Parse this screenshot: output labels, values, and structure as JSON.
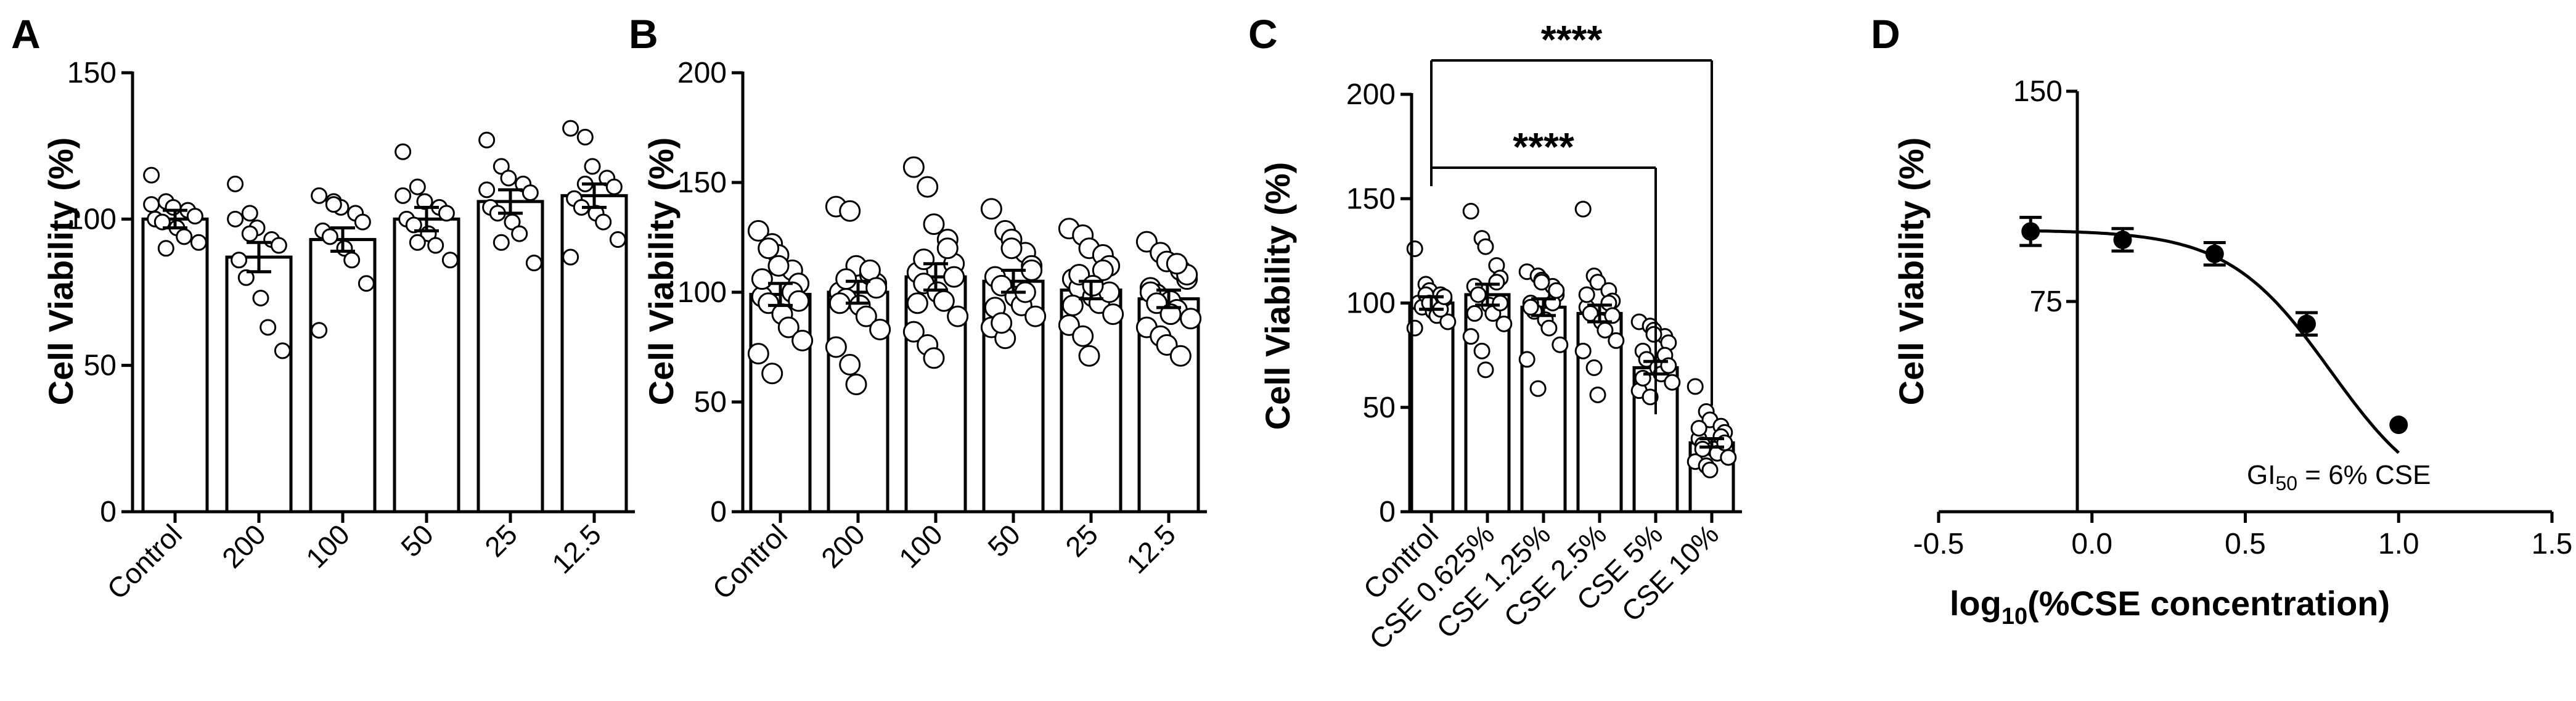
{
  "panels": [
    {
      "label": "A"
    },
    {
      "label": "B"
    },
    {
      "label": "C"
    },
    {
      "label": "D"
    }
  ],
  "chart_data": [
    {
      "id": "A",
      "type": "bar",
      "ylabel": "Cell Viability (%)",
      "xlabel": "",
      "ylim": [
        0,
        150
      ],
      "yticks": [
        "0",
        "50",
        "100",
        "150"
      ],
      "categories": [
        "Control",
        "200",
        "100",
        "50",
        "25",
        "12.5"
      ],
      "values": [
        100,
        87,
        93,
        100,
        106,
        108
      ],
      "sem": [
        3,
        5,
        4,
        4,
        4,
        4
      ],
      "points": [
        [
          115,
          106,
          104,
          103,
          101,
          100,
          99,
          97,
          94,
          92,
          105,
          90
        ],
        [
          112,
          102,
          97,
          93,
          91,
          86,
          80,
          73,
          63,
          55,
          100,
          95
        ],
        [
          108,
          106,
          104,
          102,
          99,
          96,
          94,
          90,
          86,
          78,
          62,
          105
        ],
        [
          123,
          111,
          106,
          104,
          102,
          100,
          98,
          95,
          91,
          86,
          108,
          92
        ],
        [
          127,
          118,
          114,
          112,
          109,
          104,
          102,
          99,
          95,
          85,
          110,
          92
        ],
        [
          131,
          128,
          118,
          114,
          111,
          107,
          104,
          102,
          99,
          93,
          87,
          112
        ]
      ]
    },
    {
      "id": "B",
      "type": "bar",
      "ylabel": "Cell Viability (%)",
      "xlabel": "",
      "ylim": [
        0,
        200
      ],
      "yticks": [
        "0",
        "50",
        "100",
        "150",
        "200"
      ],
      "categories": [
        "Control",
        "200",
        "100",
        "50",
        "25",
        "12.5"
      ],
      "values": [
        99,
        100,
        107,
        105,
        101,
        97
      ],
      "sem": [
        5,
        5,
        6,
        5,
        4,
        4
      ],
      "points": [
        [
          128,
          122,
          117,
          110,
          104,
          98,
          95,
          90,
          84,
          78,
          72,
          63,
          112,
          100,
          96,
          106,
          120
        ],
        [
          139,
          137,
          112,
          108,
          104,
          100,
          97,
          94,
          89,
          83,
          75,
          67,
          58,
          110,
          102,
          95,
          106
        ],
        [
          157,
          148,
          131,
          124,
          113,
          109,
          104,
          100,
          96,
          89,
          82,
          76,
          70,
          120,
          107,
          95,
          115
        ],
        [
          138,
          128,
          124,
          118,
          112,
          107,
          103,
          98,
          94,
          89,
          84,
          79,
          120,
          100,
          110,
          93,
          86
        ],
        [
          129,
          126,
          120,
          117,
          112,
          106,
          102,
          98,
          95,
          90,
          85,
          80,
          71,
          110,
          100,
          94,
          108,
          103
        ],
        [
          123,
          118,
          114,
          110,
          106,
          102,
          99,
          96,
          92,
          88,
          84,
          80,
          76,
          71,
          108,
          100,
          95,
          90,
          113
        ]
      ]
    },
    {
      "id": "C",
      "type": "bar",
      "ylabel": "Cell Viability (%)",
      "xlabel": "",
      "ylim": [
        0,
        200
      ],
      "yticks": [
        "0",
        "50",
        "100",
        "150",
        "200"
      ],
      "categories": [
        "Control",
        "CSE 0.625%",
        "CSE 1.25%",
        "CSE 2.5%",
        "CSE 5%",
        "CSE 10%"
      ],
      "values": [
        100,
        104,
        98,
        95,
        69,
        33
      ],
      "sem": [
        3,
        5,
        4,
        4,
        3,
        2
      ],
      "points": [
        [
          126,
          109,
          106,
          104,
          102,
          100,
          98,
          96,
          94,
          91,
          88,
          104,
          100,
          97,
          103
        ],
        [
          144,
          131,
          127,
          118,
          112,
          108,
          104,
          99,
          95,
          90,
          84,
          77,
          68,
          110,
          100,
          95
        ],
        [
          115,
          113,
          111,
          108,
          104,
          100,
          96,
          92,
          88,
          80,
          73,
          59,
          110,
          100,
          106,
          98
        ],
        [
          145,
          113,
          110,
          106,
          101,
          98,
          95,
          91,
          87,
          82,
          77,
          69,
          56,
          100,
          94,
          104
        ],
        [
          91,
          89,
          87,
          84,
          81,
          77,
          73,
          69,
          66,
          62,
          58,
          55,
          85,
          75,
          70,
          64
        ],
        [
          60,
          48,
          44,
          41,
          38,
          35,
          32,
          30,
          28,
          26,
          24,
          22,
          20,
          36,
          33,
          40,
          30
        ]
      ],
      "annotations": [
        {
          "from": "Control",
          "to": "CSE 10%",
          "text": "****"
        },
        {
          "from": "Control",
          "to": "CSE 5%",
          "text": "****"
        }
      ]
    },
    {
      "id": "D",
      "type": "scatter",
      "ylabel": "Cell Viability (%)",
      "xlabel_main": "log",
      "xlabel_sub": "10",
      "xlabel_rest": "(%CSE concentration)",
      "xlim": [
        -0.5,
        1.5
      ],
      "ylim": [
        0,
        150
      ],
      "xticks": [
        "-0.5",
        "0.0",
        "0.5",
        "1.0",
        "1.5"
      ],
      "yticks": [
        "75",
        "150"
      ],
      "x": [
        -0.2,
        0.1,
        0.4,
        0.7,
        1.0
      ],
      "y": [
        100,
        97,
        92,
        67,
        31
      ],
      "err": [
        5,
        4,
        4,
        4,
        0
      ],
      "curve": {
        "top": 100.5,
        "bottom": 0,
        "logGI50": 0.778,
        "hill": 2.6
      },
      "annotation_main": "GI",
      "annotation_sub": "50",
      "annotation_rest": " = 6% CSE"
    }
  ]
}
